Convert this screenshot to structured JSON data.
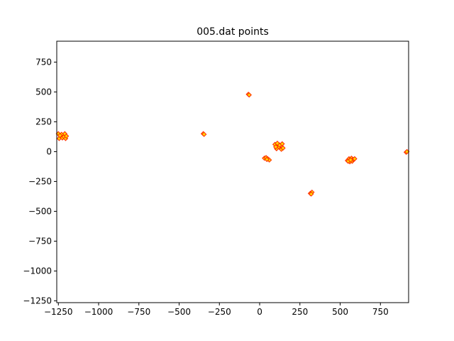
{
  "chart_data": {
    "type": "scatter",
    "title": "005.dat points",
    "xlabel": "",
    "ylabel": "",
    "xlim": [
      -1260,
      925
    ],
    "ylim": [
      -1265,
      925
    ],
    "grid": false,
    "xticks": [
      -1250,
      -1000,
      -750,
      -500,
      -250,
      0,
      250,
      500,
      750
    ],
    "xtick_labels": [
      "−1250",
      "−1000",
      "−750",
      "−500",
      "−250",
      "0",
      "250",
      "500",
      "750"
    ],
    "yticks": [
      750,
      500,
      250,
      0,
      -250,
      -500,
      -750,
      -1000,
      -1250
    ],
    "ytick_labels": [
      "750",
      "500",
      "250",
      "0",
      "−250",
      "−500",
      "−750",
      "−1000",
      "−1250"
    ],
    "marker_edge_color": "#ff2a00",
    "marker_face_color": "#ffd400",
    "series": [
      {
        "points": [
          [
            -1250,
            150
          ],
          [
            -1245,
            110
          ],
          [
            -1235,
            130
          ],
          [
            -1230,
            145
          ],
          [
            -1225,
            115
          ],
          [
            -1215,
            125
          ],
          [
            -1210,
            150
          ],
          [
            -1205,
            110
          ],
          [
            -1200,
            130
          ],
          [
            -1240,
            135
          ],
          [
            -350,
            150
          ],
          [
            -345,
            145
          ],
          [
            -70,
            480
          ],
          [
            -65,
            475
          ],
          [
            30,
            -55
          ],
          [
            40,
            -50
          ],
          [
            50,
            -60
          ],
          [
            60,
            -70
          ],
          [
            45,
            -65
          ],
          [
            95,
            60
          ],
          [
            105,
            25
          ],
          [
            110,
            70
          ],
          [
            120,
            40
          ],
          [
            125,
            55
          ],
          [
            135,
            20
          ],
          [
            140,
            65
          ],
          [
            145,
            30
          ],
          [
            100,
            40
          ],
          [
            315,
            -350
          ],
          [
            325,
            -340
          ],
          [
            320,
            -355
          ],
          [
            545,
            -75
          ],
          [
            555,
            -60
          ],
          [
            560,
            -85
          ],
          [
            570,
            -55
          ],
          [
            575,
            -80
          ],
          [
            580,
            -65
          ],
          [
            590,
            -60
          ],
          [
            550,
            -80
          ],
          [
            565,
            -70
          ],
          [
            910,
            -5
          ],
          [
            915,
            0
          ]
        ]
      }
    ]
  }
}
